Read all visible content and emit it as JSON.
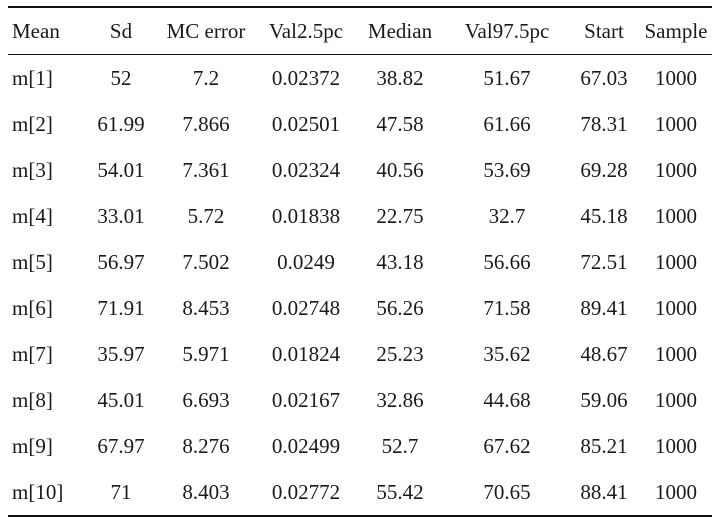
{
  "table": {
    "headers": [
      "Mean",
      "Sd",
      "MC error",
      "Val2.5pc",
      "Median",
      "Val97.5pc",
      "Start",
      "Sample"
    ],
    "rows": [
      [
        "m[1]",
        "52",
        "7.2",
        "0.02372",
        "38.82",
        "51.67",
        "67.03",
        "1000"
      ],
      [
        "m[2]",
        "61.99",
        "7.866",
        "0.02501",
        "47.58",
        "61.66",
        "78.31",
        "1000"
      ],
      [
        "m[3]",
        "54.01",
        "7.361",
        "0.02324",
        "40.56",
        "53.69",
        "69.28",
        "1000"
      ],
      [
        "m[4]",
        "33.01",
        "5.72",
        "0.01838",
        "22.75",
        "32.7",
        "45.18",
        "1000"
      ],
      [
        "m[5]",
        "56.97",
        "7.502",
        "0.0249",
        "43.18",
        "56.66",
        "72.51",
        "1000"
      ],
      [
        "m[6]",
        "71.91",
        "8.453",
        "0.02748",
        "56.26",
        "71.58",
        "89.41",
        "1000"
      ],
      [
        "m[7]",
        "35.97",
        "5.971",
        "0.01824",
        "25.23",
        "35.62",
        "48.67",
        "1000"
      ],
      [
        "m[8]",
        "45.01",
        "6.693",
        "0.02167",
        "32.86",
        "44.68",
        "59.06",
        "1000"
      ],
      [
        "m[9]",
        "67.97",
        "8.276",
        "0.02499",
        "52.7",
        "67.62",
        "85.21",
        "1000"
      ],
      [
        "m[10]",
        "71",
        "8.403",
        "0.02772",
        "55.42",
        "70.65",
        "88.41",
        "1000"
      ]
    ]
  }
}
